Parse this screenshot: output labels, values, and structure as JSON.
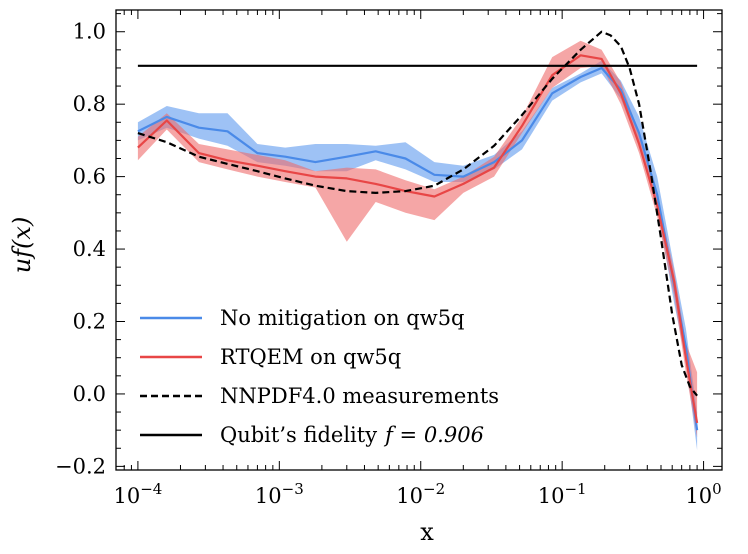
{
  "chart_data": {
    "type": "line",
    "xscale": "log",
    "xlim": [
      7e-05,
      1.35
    ],
    "ylim": [
      -0.21,
      1.06
    ],
    "xlabel": "x",
    "ylabel": "uf(x)",
    "x_ticks": [
      {
        "value": 0.0001,
        "base": "10",
        "exp": "−4"
      },
      {
        "value": 0.001,
        "base": "10",
        "exp": "−3"
      },
      {
        "value": 0.01,
        "base": "10",
        "exp": "−2"
      },
      {
        "value": 0.1,
        "base": "10",
        "exp": "−1"
      },
      {
        "value": 1,
        "base": "10",
        "exp": "0"
      }
    ],
    "y_ticks": [
      {
        "value": -0.2,
        "label": "−0.2"
      },
      {
        "value": 0.0,
        "label": "0.0"
      },
      {
        "value": 0.2,
        "label": "0.2"
      },
      {
        "value": 0.4,
        "label": "0.4"
      },
      {
        "value": 0.6,
        "label": "0.6"
      },
      {
        "value": 0.8,
        "label": "0.8"
      },
      {
        "value": 1.0,
        "label": "1.0"
      }
    ],
    "series": [
      {
        "name": "No mitigation on qw5q",
        "color": "#4a8ae8",
        "band_color": "#5e9aef",
        "x": [
          0.0001,
          0.00016,
          0.00027,
          0.00043,
          0.0007,
          0.0011,
          0.0018,
          0.003,
          0.0048,
          0.0078,
          0.0125,
          0.02,
          0.033,
          0.052,
          0.085,
          0.135,
          0.19,
          0.26,
          0.35,
          0.47,
          0.62,
          0.75,
          0.9
        ],
        "y": [
          0.725,
          0.765,
          0.735,
          0.725,
          0.665,
          0.655,
          0.64,
          0.655,
          0.67,
          0.65,
          0.605,
          0.6,
          0.64,
          0.7,
          0.83,
          0.875,
          0.9,
          0.84,
          0.72,
          0.55,
          0.3,
          0.13,
          -0.1
        ],
        "upper": [
          0.75,
          0.795,
          0.775,
          0.775,
          0.69,
          0.68,
          0.69,
          0.69,
          0.685,
          0.695,
          0.64,
          0.63,
          0.66,
          0.725,
          0.845,
          0.885,
          0.92,
          0.865,
          0.765,
          0.6,
          0.35,
          0.18,
          -0.05
        ],
        "lower": [
          0.7,
          0.735,
          0.705,
          0.685,
          0.64,
          0.63,
          0.615,
          0.615,
          0.645,
          0.62,
          0.585,
          0.585,
          0.62,
          0.675,
          0.81,
          0.86,
          0.885,
          0.815,
          0.685,
          0.51,
          0.25,
          0.09,
          -0.155
        ]
      },
      {
        "name": "RTQEM on qw5q",
        "color": "#e84646",
        "band_color": "#ef6a6a",
        "x": [
          0.0001,
          0.00016,
          0.00027,
          0.00043,
          0.0007,
          0.0011,
          0.0018,
          0.003,
          0.0048,
          0.0078,
          0.0125,
          0.02,
          0.033,
          0.052,
          0.085,
          0.135,
          0.19,
          0.26,
          0.35,
          0.47,
          0.62,
          0.75,
          0.9
        ],
        "y": [
          0.68,
          0.755,
          0.665,
          0.645,
          0.63,
          0.615,
          0.6,
          0.595,
          0.58,
          0.56,
          0.545,
          0.58,
          0.625,
          0.74,
          0.88,
          0.935,
          0.925,
          0.83,
          0.69,
          0.52,
          0.31,
          0.1,
          -0.08
        ],
        "upper": [
          0.71,
          0.775,
          0.69,
          0.675,
          0.66,
          0.645,
          0.615,
          0.625,
          0.62,
          0.59,
          0.565,
          0.6,
          0.655,
          0.765,
          0.93,
          0.975,
          0.95,
          0.86,
          0.72,
          0.55,
          0.34,
          0.14,
          0.06
        ],
        "lower": [
          0.645,
          0.73,
          0.64,
          0.62,
          0.6,
          0.585,
          0.57,
          0.42,
          0.53,
          0.5,
          0.48,
          0.555,
          0.6,
          0.72,
          0.845,
          0.9,
          0.905,
          0.8,
          0.665,
          0.49,
          0.27,
          0.06,
          -0.12
        ]
      },
      {
        "name": "NNPDF4.0 measurements",
        "color": "#000000",
        "dash": "7,4",
        "x": [
          0.0001,
          0.00016,
          0.00027,
          0.00043,
          0.0007,
          0.0011,
          0.0018,
          0.003,
          0.0048,
          0.0078,
          0.0125,
          0.02,
          0.033,
          0.052,
          0.085,
          0.135,
          0.19,
          0.22,
          0.26,
          0.3,
          0.35,
          0.42,
          0.5,
          0.6,
          0.7,
          0.8,
          0.9
        ],
        "y": [
          0.72,
          0.695,
          0.655,
          0.635,
          0.615,
          0.595,
          0.575,
          0.56,
          0.555,
          0.56,
          0.575,
          0.62,
          0.685,
          0.77,
          0.87,
          0.95,
          1.0,
          0.99,
          0.96,
          0.9,
          0.8,
          0.62,
          0.43,
          0.22,
          0.08,
          0.02,
          -0.005
        ]
      },
      {
        "name": "Qubit’s fidelity",
        "legend_suffix": "f = 0.906",
        "color": "#000000",
        "x": [
          0.0001,
          0.9
        ],
        "y": [
          0.906,
          0.906
        ]
      }
    ],
    "legend_position": "lower-left"
  }
}
